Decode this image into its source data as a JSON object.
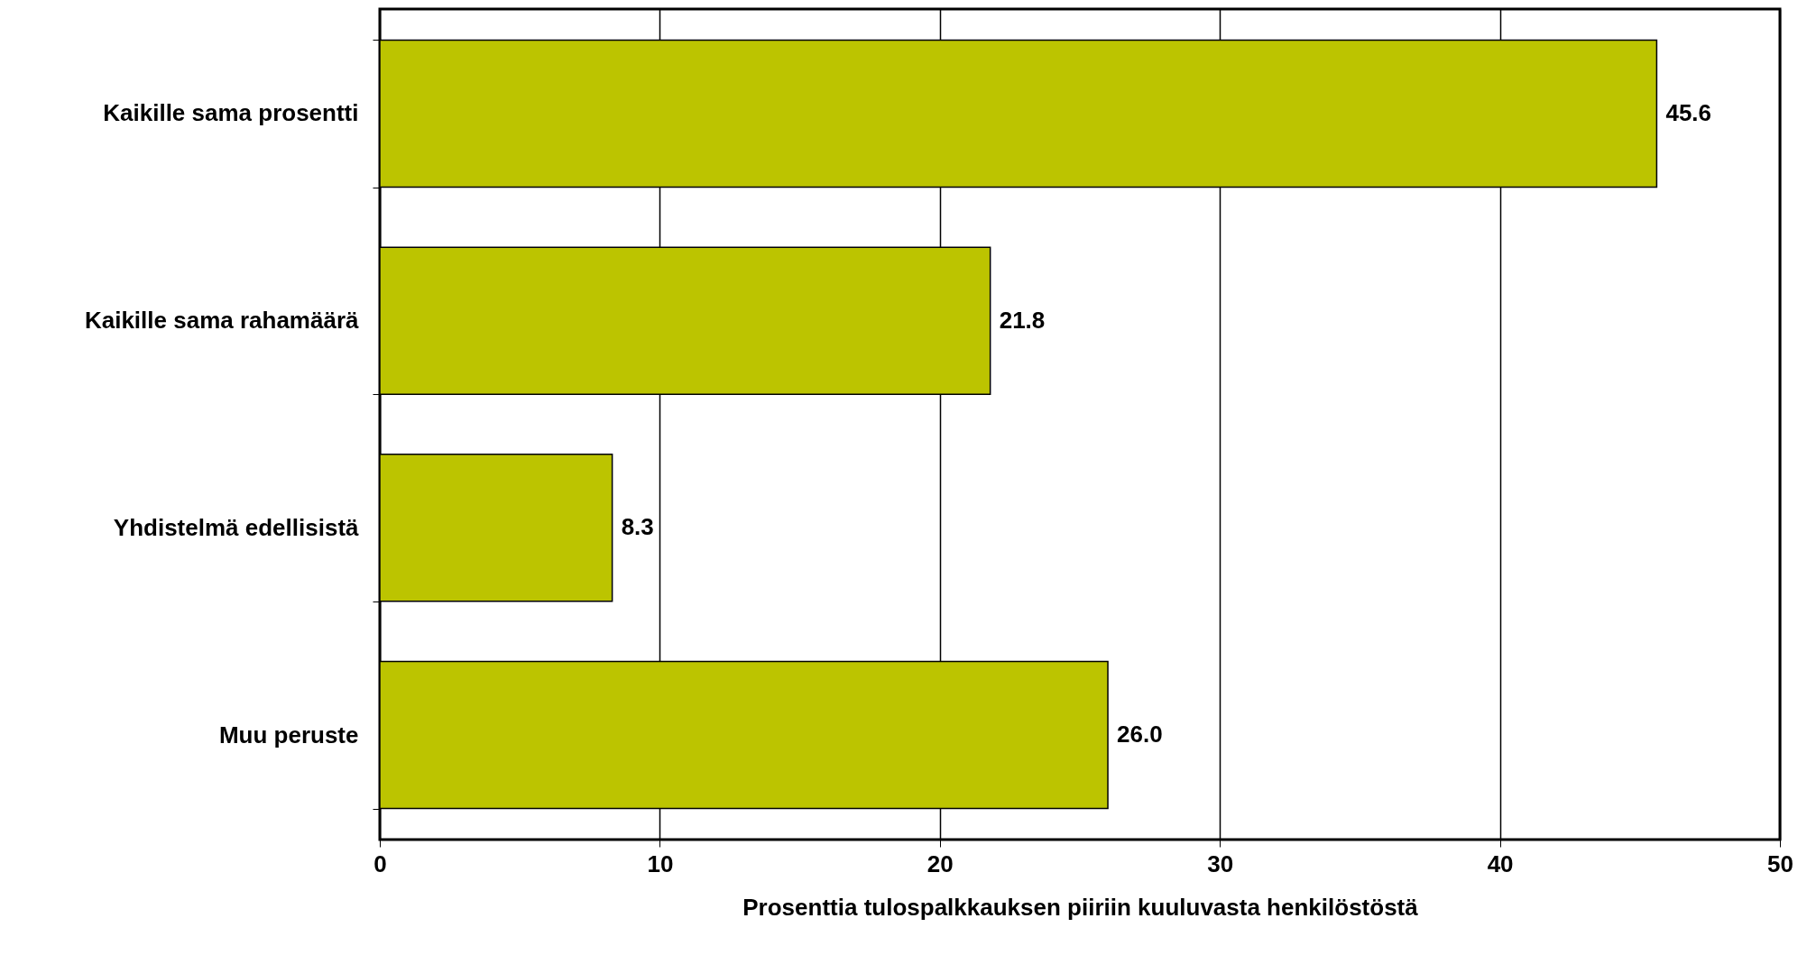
{
  "chart_data": {
    "type": "bar",
    "orientation": "horizontal",
    "xlabel": "Prosenttia tulospalkkauksen piiriin kuuluvasta henkilöstöstä",
    "categories": [
      "Kaikille sama prosentti",
      "Kaikille sama rahamäärä",
      "Yhdistelmä edellisistä",
      "Muu peruste"
    ],
    "values": [
      45.6,
      21.8,
      8.3,
      26.0
    ],
    "value_labels": [
      "45.6",
      "21.8",
      "8.3",
      "26.0"
    ],
    "color": "#bcc400",
    "xlim": [
      0,
      50
    ],
    "xticks": [
      0,
      10,
      20,
      30,
      40,
      50
    ],
    "grid": "x"
  }
}
